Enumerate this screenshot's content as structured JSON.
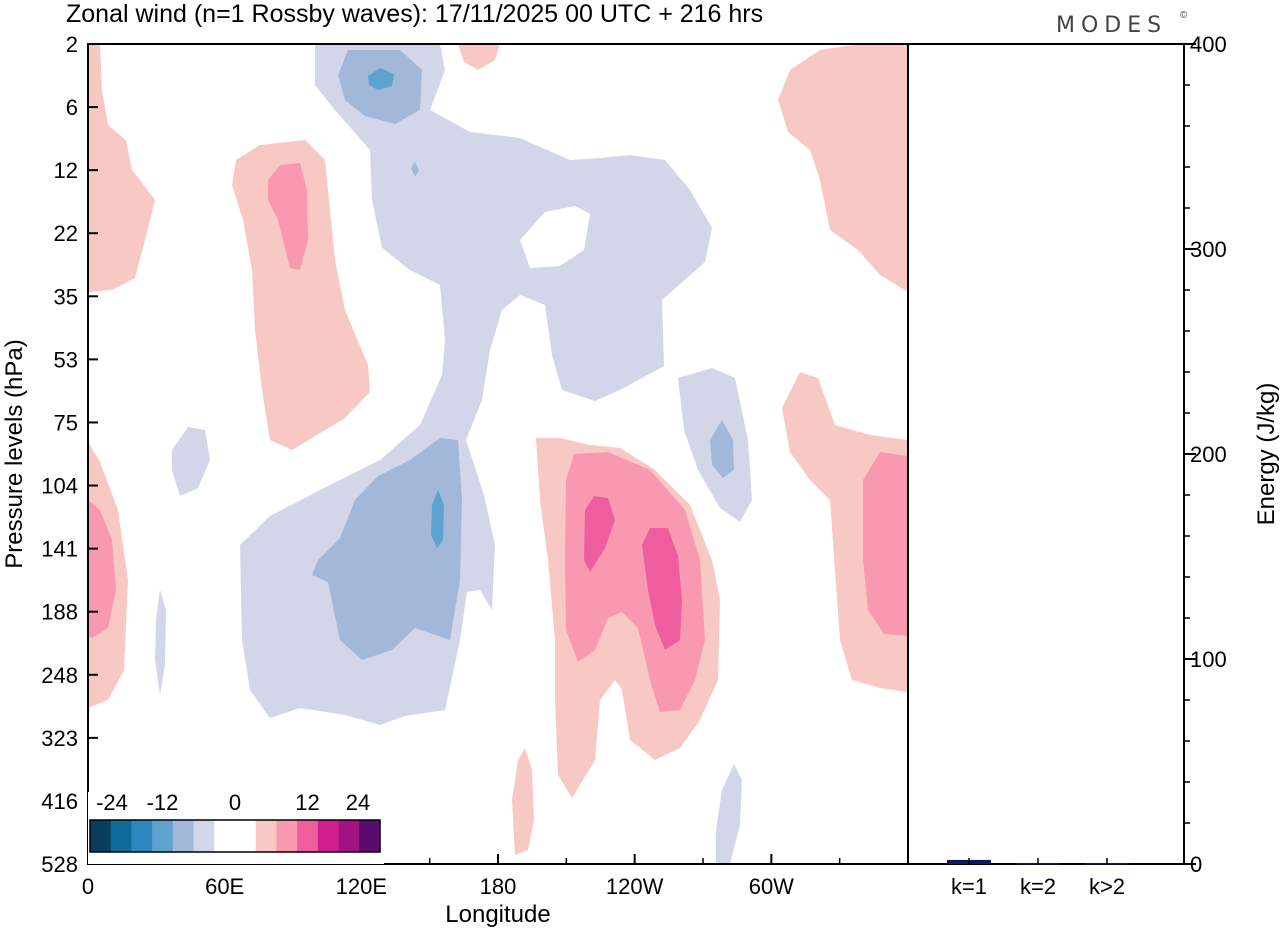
{
  "chart_data": [
    {
      "type": "heatmap",
      "title": "Zonal wind (n=1 Rossby waves):  17/11/2025  00 UTC  + 216 hrs",
      "xlabel": "Longitude",
      "ylabel": "Pressure levels (hPa)",
      "x_ticks": [
        "0",
        "60E",
        "120E",
        "180",
        "120W",
        "60W"
      ],
      "y_ticks": [
        "2",
        "6",
        "12",
        "22",
        "35",
        "53",
        "75",
        "104",
        "141",
        "188",
        "248",
        "323",
        "416",
        "528"
      ],
      "colorbar": {
        "labels": [
          "-24",
          "-12",
          "0",
          "12",
          "24"
        ],
        "colors": [
          "#0b3d5c",
          "#0f6a9c",
          "#2c87bf",
          "#5ea2cf",
          "#a2b8d8",
          "#d3d6e8",
          "#ffffff",
          "#ffffff",
          "#f8c8c4",
          "#f899b1",
          "#ee5e9e",
          "#d21f8e",
          "#a11380",
          "#5b0a6e"
        ]
      },
      "regions": [
        {
          "name": "neg-large-upper",
          "level": "-6",
          "color": "#d3d6e8"
        },
        {
          "name": "neg-mid-region",
          "level": "-12",
          "color": "#a2b8d8"
        },
        {
          "name": "pos-upper-left",
          "level": "6",
          "color": "#f8c8c4"
        },
        {
          "name": "pos-core-120w",
          "level": "18",
          "color": "#ee5e9e"
        }
      ]
    },
    {
      "type": "bar",
      "ylabel": "Energy (J/kg)",
      "categories": [
        "k=1",
        "k=2",
        "k>2"
      ],
      "values": [
        2,
        0.5,
        0.5
      ],
      "ylim": [
        0,
        400
      ],
      "y_ticks": [
        "0",
        "100",
        "200",
        "300",
        "400"
      ],
      "bar_color": "#101a5a"
    }
  ],
  "branding": {
    "logo_text": "MODES",
    "mark": "©"
  }
}
